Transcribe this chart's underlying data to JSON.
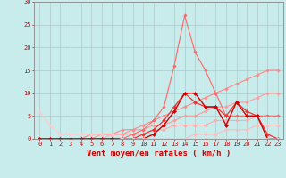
{
  "bg_color": "#c8ecec",
  "grid_color": "#b0c8c8",
  "xlabel": "Vent moyen/en rafales ( km/h )",
  "xlim": [
    -0.5,
    23.5
  ],
  "ylim": [
    0,
    30
  ],
  "yticks": [
    0,
    5,
    10,
    15,
    20,
    25,
    30
  ],
  "xticks": [
    0,
    1,
    2,
    3,
    4,
    5,
    6,
    7,
    8,
    9,
    10,
    11,
    12,
    13,
    14,
    15,
    16,
    17,
    18,
    19,
    20,
    21,
    22,
    23
  ],
  "lines": [
    {
      "x": [
        0,
        1,
        2,
        3,
        4,
        5,
        6,
        7,
        8,
        9,
        10,
        11,
        12,
        13,
        14,
        15,
        16,
        17,
        18,
        19,
        20,
        21,
        22,
        23
      ],
      "y": [
        0,
        0,
        0,
        0,
        0,
        0,
        0,
        0,
        0,
        0,
        0,
        0,
        0,
        0,
        0,
        1,
        1,
        1,
        2,
        2,
        2,
        3,
        3,
        3
      ],
      "color": "#ffbbbb",
      "lw": 0.8,
      "marker": "D",
      "ms": 1.8
    },
    {
      "x": [
        0,
        1,
        2,
        3,
        4,
        5,
        6,
        7,
        8,
        9,
        10,
        11,
        12,
        13,
        14,
        15,
        16,
        17,
        18,
        19,
        20,
        21,
        22,
        23
      ],
      "y": [
        0,
        0,
        0,
        0,
        0,
        0,
        0,
        1,
        1,
        1,
        1,
        2,
        2,
        3,
        3,
        3,
        3,
        4,
        4,
        4,
        4,
        5,
        5,
        5
      ],
      "color": "#ffaaaa",
      "lw": 0.8,
      "marker": "D",
      "ms": 1.8
    },
    {
      "x": [
        0,
        1,
        2,
        3,
        4,
        5,
        6,
        7,
        8,
        9,
        10,
        11,
        12,
        13,
        14,
        15,
        16,
        17,
        18,
        19,
        20,
        21,
        22,
        23
      ],
      "y": [
        0,
        0,
        0,
        0,
        0,
        0,
        1,
        1,
        1,
        2,
        2,
        3,
        3,
        4,
        5,
        5,
        6,
        7,
        7,
        8,
        8,
        9,
        10,
        10
      ],
      "color": "#ff9999",
      "lw": 0.8,
      "marker": "D",
      "ms": 1.8
    },
    {
      "x": [
        0,
        1,
        2,
        3,
        4,
        5,
        6,
        7,
        8,
        9,
        10,
        11,
        12,
        13,
        14,
        15,
        16,
        17,
        18,
        19,
        20,
        21,
        22,
        23
      ],
      "y": [
        0,
        0,
        0,
        0,
        0,
        1,
        1,
        1,
        2,
        2,
        3,
        4,
        5,
        6,
        7,
        8,
        9,
        10,
        11,
        12,
        13,
        14,
        15,
        15
      ],
      "color": "#ff8888",
      "lw": 0.8,
      "marker": "D",
      "ms": 1.8
    },
    {
      "x": [
        0,
        1,
        2,
        3,
        4,
        5,
        6,
        7,
        8,
        9,
        10,
        11,
        12,
        13,
        14,
        15,
        16,
        17,
        18,
        19,
        20,
        21,
        22,
        23
      ],
      "y": [
        0,
        0,
        0,
        0,
        0,
        0,
        0,
        0,
        0,
        1,
        2,
        4,
        7,
        16,
        27,
        19,
        15,
        10,
        5,
        5,
        5,
        5,
        5,
        5
      ],
      "color": "#ff6666",
      "lw": 0.8,
      "marker": "D",
      "ms": 1.8
    },
    {
      "x": [
        0,
        1,
        2,
        3,
        4,
        5,
        6,
        7,
        8,
        9,
        10,
        11,
        12,
        13,
        14,
        15,
        16,
        17,
        18,
        19,
        20,
        21,
        22,
        23
      ],
      "y": [
        0,
        0,
        0,
        0,
        0,
        0,
        0,
        0,
        0,
        0,
        1,
        2,
        4,
        7,
        10,
        8,
        7,
        7,
        5,
        8,
        6,
        5,
        1,
        0
      ],
      "color": "#ee3333",
      "lw": 0.9,
      "marker": "D",
      "ms": 2.0
    },
    {
      "x": [
        0,
        1,
        2,
        3,
        4,
        5,
        6,
        7,
        8,
        9,
        10,
        11,
        12,
        13,
        14,
        15,
        16,
        17,
        18,
        19,
        20,
        21,
        22,
        23
      ],
      "y": [
        0,
        0,
        0,
        0,
        0,
        0,
        0,
        0,
        0,
        0,
        0,
        1,
        3,
        6,
        10,
        10,
        7,
        7,
        3,
        8,
        5,
        5,
        0,
        0
      ],
      "color": "#cc0000",
      "lw": 1.0,
      "marker": "D",
      "ms": 2.0
    },
    {
      "x": [
        0,
        1,
        2,
        3,
        4,
        5,
        6,
        7,
        8,
        9,
        10,
        11,
        12,
        13,
        14,
        15,
        16,
        17,
        18,
        19,
        20,
        21,
        22,
        23
      ],
      "y": [
        6,
        3,
        1,
        1,
        1,
        1,
        1,
        1,
        0,
        0,
        0,
        0,
        0,
        0,
        0,
        0,
        0,
        0,
        0,
        0,
        0,
        0,
        0,
        0
      ],
      "color": "#ffcccc",
      "lw": 0.8,
      "marker": "D",
      "ms": 1.8
    }
  ],
  "tick_color": "#cc0000",
  "label_color": "#cc0000",
  "axis_color": "#888888",
  "xlabel_fontsize": 6.5,
  "tick_fontsize": 5.0
}
